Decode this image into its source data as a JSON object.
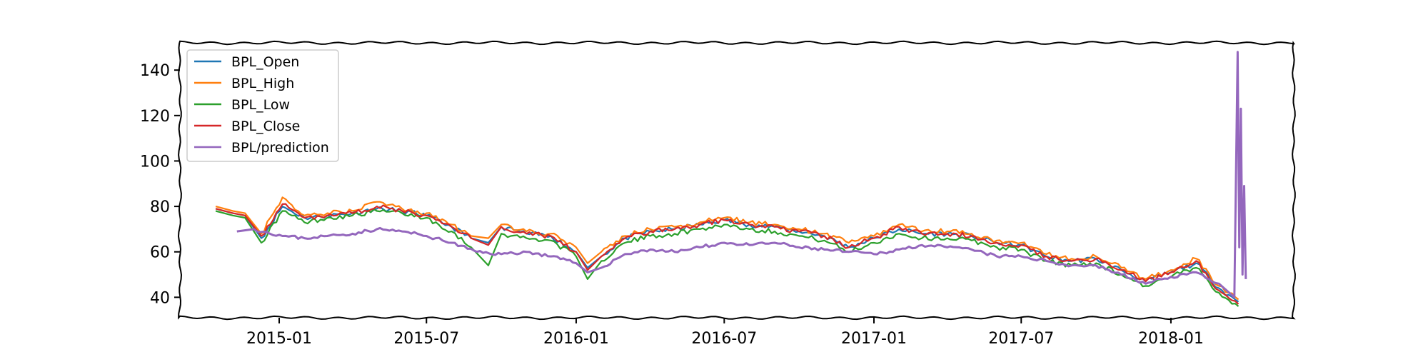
{
  "chart_data": {
    "type": "line",
    "title": "",
    "xlabel": "",
    "ylabel": "",
    "xlim": [
      "2014-09-01",
      "2018-06-01"
    ],
    "ylim": [
      31,
      152
    ],
    "grid": false,
    "legend_position": "top-left",
    "x_ticks": [
      "2015-01",
      "2015-07",
      "2016-01",
      "2016-07",
      "2017-01",
      "2017-07",
      "2018-01"
    ],
    "y_ticks": [
      40,
      60,
      80,
      100,
      120,
      140
    ],
    "x": [
      "2014-10-15",
      "2014-11-05",
      "2014-11-20",
      "2014-12-10",
      "2015-01-05",
      "2015-02-01",
      "2015-03-01",
      "2015-04-01",
      "2015-05-01",
      "2015-06-01",
      "2015-07-01",
      "2015-08-01",
      "2015-08-25",
      "2015-09-15",
      "2015-10-01",
      "2015-11-01",
      "2015-12-01",
      "2016-01-01",
      "2016-01-15",
      "2016-02-01",
      "2016-03-01",
      "2016-04-01",
      "2016-05-01",
      "2016-06-01",
      "2016-07-01",
      "2016-08-01",
      "2016-09-01",
      "2016-10-01",
      "2016-11-01",
      "2016-12-01",
      "2017-01-01",
      "2017-02-01",
      "2017-03-01",
      "2017-04-01",
      "2017-05-01",
      "2017-06-01",
      "2017-07-01",
      "2017-08-01",
      "2017-09-01",
      "2017-10-01",
      "2017-11-01",
      "2017-12-01",
      "2018-01-01",
      "2018-02-01",
      "2018-03-01",
      "2018-03-25"
    ],
    "series": [
      {
        "name": "BPL_Open",
        "color": "#1f77b4",
        "values": [
          79,
          77,
          76,
          66,
          80,
          75,
          76,
          77,
          79,
          78,
          76,
          71,
          66,
          64,
          71,
          68,
          67,
          60,
          53,
          58,
          66,
          69,
          70,
          72,
          74,
          72,
          71,
          69,
          67,
          62,
          66,
          70,
          68,
          68,
          67,
          64,
          63,
          58,
          56,
          57,
          52,
          47,
          51,
          55,
          44,
          38
        ]
      },
      {
        "name": "BPL_High",
        "color": "#ff7f0e",
        "values": [
          80,
          78,
          77,
          68,
          84,
          76,
          77,
          78,
          82,
          79,
          77,
          72,
          67,
          66,
          72,
          69,
          68,
          62,
          55,
          60,
          67,
          70,
          71,
          73,
          75,
          73,
          72,
          70,
          68,
          64,
          67,
          72,
          69,
          69,
          68,
          65,
          64,
          59,
          57,
          58,
          53,
          48,
          52,
          57,
          45,
          39
        ]
      },
      {
        "name": "BPL_Low",
        "color": "#2ca02c",
        "values": [
          78,
          76,
          75,
          64,
          78,
          73,
          75,
          76,
          78,
          77,
          75,
          69,
          62,
          54,
          68,
          66,
          65,
          58,
          48,
          56,
          64,
          67,
          68,
          70,
          72,
          70,
          69,
          67,
          65,
          60,
          64,
          68,
          66,
          66,
          65,
          62,
          61,
          56,
          54,
          55,
          50,
          45,
          49,
          53,
          42,
          36
        ]
      },
      {
        "name": "BPL_Close",
        "color": "#d62728",
        "values": [
          79,
          77,
          76,
          67,
          81,
          75,
          76,
          77,
          80,
          78,
          76,
          71,
          66,
          63,
          71,
          68,
          67,
          60,
          52,
          58,
          66,
          69,
          70,
          72,
          74,
          72,
          71,
          69,
          67,
          62,
          66,
          71,
          68,
          68,
          67,
          64,
          63,
          58,
          56,
          57,
          52,
          47,
          51,
          56,
          43,
          37
        ]
      },
      {
        "name": "BPL/prediction",
        "color": "#9467bd",
        "x": [
          "2014-11-10",
          "2014-12-01",
          "2015-01-05",
          "2015-02-01",
          "2015-03-01",
          "2015-04-01",
          "2015-05-01",
          "2015-06-01",
          "2015-07-01",
          "2015-08-01",
          "2015-09-01",
          "2015-10-01",
          "2015-11-01",
          "2015-12-01",
          "2016-01-01",
          "2016-01-15",
          "2016-02-01",
          "2016-03-01",
          "2016-04-01",
          "2016-05-01",
          "2016-06-01",
          "2016-07-01",
          "2016-08-01",
          "2016-09-01",
          "2016-10-01",
          "2016-11-01",
          "2016-12-01",
          "2017-01-01",
          "2017-02-01",
          "2017-03-01",
          "2017-04-01",
          "2017-05-01",
          "2017-06-01",
          "2017-07-01",
          "2017-08-01",
          "2017-09-01",
          "2017-10-01",
          "2017-11-01",
          "2017-12-01",
          "2018-01-01",
          "2018-02-01",
          "2018-03-01",
          "2018-03-20",
          "2018-03-24",
          "2018-03-26",
          "2018-03-28",
          "2018-03-30",
          "2018-04-01",
          "2018-04-03"
        ],
        "values": [
          69,
          70,
          67,
          66,
          67,
          68,
          70,
          69,
          67,
          64,
          60,
          59,
          60,
          58,
          55,
          51,
          53,
          59,
          61,
          60,
          62,
          64,
          63,
          64,
          62,
          61,
          60,
          59,
          61,
          63,
          62,
          61,
          58,
          58,
          56,
          54,
          54,
          50,
          46,
          49,
          51,
          46,
          40,
          148,
          62,
          123,
          50,
          89,
          48
        ]
      }
    ]
  }
}
